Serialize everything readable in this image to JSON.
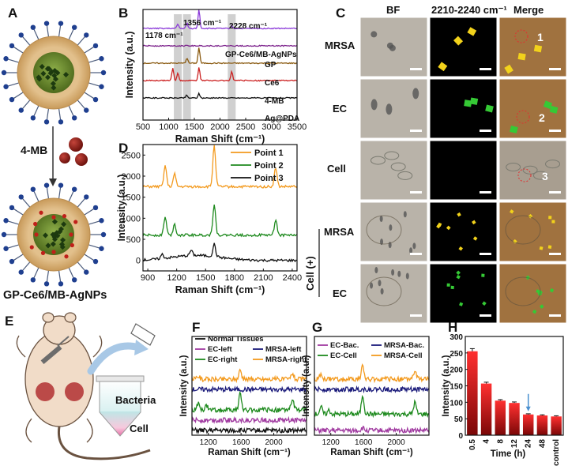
{
  "panel_letters": {
    "a": "A",
    "b": "B",
    "c": "C",
    "d": "D",
    "e": "E",
    "f": "F",
    "g": "G",
    "h": "H"
  },
  "panel_a": {
    "arrow_label": "4-MB",
    "bottom_label": "GP-Ce6/MB-AgNPs"
  },
  "panel_c": {
    "col_headers": [
      "BF",
      "2210-2240 cm⁻¹",
      "Merge"
    ],
    "row_labels": [
      "MRSA",
      "EC",
      "Cell",
      "MRSA",
      "EC"
    ],
    "group_label": "Cell (+)",
    "markers": [
      "1",
      "2",
      "3"
    ],
    "colors": {
      "bf_gray": "#b9b3a9",
      "signal_yellow": "#f2d21b",
      "signal_green": "#35c935",
      "merge_brown": "#a0723f"
    }
  },
  "panel_e": {
    "labels": [
      "Bacteria",
      "Cell"
    ]
  },
  "chart_data": [
    {
      "panel": "B",
      "type": "line",
      "xlabel": "Raman Shift (cm⁻¹)",
      "ylabel": "Intensity (a.u.)",
      "xlim": [
        500,
        3500
      ],
      "xticks": [
        "500",
        "1000",
        "1500",
        "2000",
        "2500",
        "3000",
        "3500"
      ],
      "annotations": [
        "1178 cm⁻¹",
        "1356 cm⁻¹",
        "2228 cm⁻¹"
      ],
      "highlight_bands": [
        1178,
        1356,
        2228
      ],
      "series": [
        {
          "name": "GP-Ce6/MB-AgNPs",
          "color": "#8b3ad9",
          "offset": 5,
          "peaks": [
            [
              1178,
              0.25
            ],
            [
              1356,
              0.3
            ],
            [
              1590,
              1.1
            ],
            [
              2228,
              0.15
            ]
          ]
        },
        {
          "name": "GP",
          "color": "#7a1f8a",
          "offset": 4,
          "peaks": []
        },
        {
          "name": "Ce6",
          "color": "#8a5a10",
          "offset": 3,
          "peaks": [
            [
              1356,
              0.3
            ],
            [
              1590,
              0.9
            ]
          ]
        },
        {
          "name": "4-MB",
          "color": "#cc2222",
          "offset": 2,
          "peaks": [
            [
              1080,
              0.7
            ],
            [
              1178,
              0.45
            ],
            [
              1590,
              0.75
            ],
            [
              2228,
              0.55
            ]
          ]
        },
        {
          "name": "Ag@PDA",
          "color": "#111111",
          "offset": 1,
          "peaks": [
            [
              1350,
              0.15
            ],
            [
              1590,
              0.25
            ]
          ]
        }
      ]
    },
    {
      "panel": "D",
      "type": "line",
      "xlabel": "Raman Shift (cm⁻¹)",
      "ylabel": "Intensity (a.u.)",
      "xlim": [
        850,
        2450
      ],
      "ylim": [
        -250,
        2750
      ],
      "xticks": [
        "900",
        "1200",
        "1500",
        "1800",
        "2100",
        "2400"
      ],
      "yticks": [
        "0",
        "500",
        "1000",
        "1500",
        "2000",
        "2500"
      ],
      "series": [
        {
          "name": "Point 1",
          "color": "#f39a1e",
          "baseline": 1750,
          "peaks": [
            [
              1080,
              500
            ],
            [
              1178,
              300
            ],
            [
              1590,
              1000
            ],
            [
              2228,
              450
            ]
          ]
        },
        {
          "name": "Point 2",
          "color": "#1e8a1e",
          "baseline": 600,
          "peaks": [
            [
              1080,
              430
            ],
            [
              1178,
              260
            ],
            [
              1590,
              750
            ],
            [
              2228,
              370
            ]
          ]
        },
        {
          "name": "Point 3",
          "color": "#111111",
          "baseline": 0,
          "peaks": [
            [
              1050,
              100
            ],
            [
              1350,
              120
            ],
            [
              1590,
              300
            ]
          ]
        }
      ]
    },
    {
      "panel": "F",
      "type": "line",
      "xlabel": "Raman Shift (cm⁻¹)",
      "ylabel": "Intensity (a.u.)",
      "xlim": [
        1000,
        2400
      ],
      "xticks": [
        "1200",
        "1600",
        "2000"
      ],
      "series": [
        {
          "name": "Normal Tissues",
          "color": "#111111",
          "offset": 0,
          "peaks": []
        },
        {
          "name": "EC-left",
          "color": "#a03aa0",
          "offset": 1,
          "peaks": []
        },
        {
          "name": "MRSA-left",
          "color": "#1a1a7a",
          "offset": 4,
          "peaks": []
        },
        {
          "name": "EC-right",
          "color": "#1e8a1e",
          "offset": 2,
          "peaks": [
            [
              1080,
              0.8
            ],
            [
              1178,
              0.5
            ],
            [
              1590,
              2.0
            ],
            [
              2228,
              1.3
            ]
          ]
        },
        {
          "name": "MRSA-right",
          "color": "#f39a1e",
          "offset": 5,
          "peaks": [
            [
              1080,
              0.4
            ],
            [
              1590,
              1.2
            ],
            [
              2228,
              0.8
            ]
          ]
        }
      ]
    },
    {
      "panel": "G",
      "type": "line",
      "xlabel": "Raman Shift (cm⁻¹)",
      "ylabel": "Intensity (a.u.)",
      "xlim": [
        1000,
        2400
      ],
      "xticks": [
        "1200",
        "1600",
        "2000"
      ],
      "series": [
        {
          "name": "EC-Bac.",
          "color": "#a03aa0",
          "offset": 0,
          "peaks": [
            [
              1590,
              0.3
            ]
          ]
        },
        {
          "name": "MRSA-Bac.",
          "color": "#1a1a7a",
          "offset": 4,
          "peaks": []
        },
        {
          "name": "EC-Cell",
          "color": "#1e8a1e",
          "offset": 1.6,
          "peaks": [
            [
              1080,
              0.9
            ],
            [
              1178,
              0.5
            ],
            [
              1590,
              2.4
            ],
            [
              2228,
              1.5
            ]
          ]
        },
        {
          "name": "MRSA-Cell",
          "color": "#f39a1e",
          "offset": 5,
          "peaks": [
            [
              1080,
              0.5
            ],
            [
              1590,
              1.6
            ],
            [
              2228,
              1.0
            ]
          ]
        }
      ]
    },
    {
      "panel": "H",
      "type": "bar",
      "categories": [
        "0.5",
        "4",
        "8",
        "12",
        "24",
        "48",
        "control"
      ],
      "values": [
        255,
        157,
        105,
        98,
        63,
        60,
        57
      ],
      "errors": [
        8,
        4,
        3,
        3,
        2,
        2,
        2
      ],
      "xlabel": "Time (h)",
      "ylabel": "Intensity (a.u.)",
      "ylim": [
        0,
        300
      ],
      "yticks": [
        "0",
        "50",
        "100",
        "150",
        "200",
        "250",
        "300"
      ],
      "arrow_at": "24",
      "bar_color": "#d42020"
    }
  ]
}
